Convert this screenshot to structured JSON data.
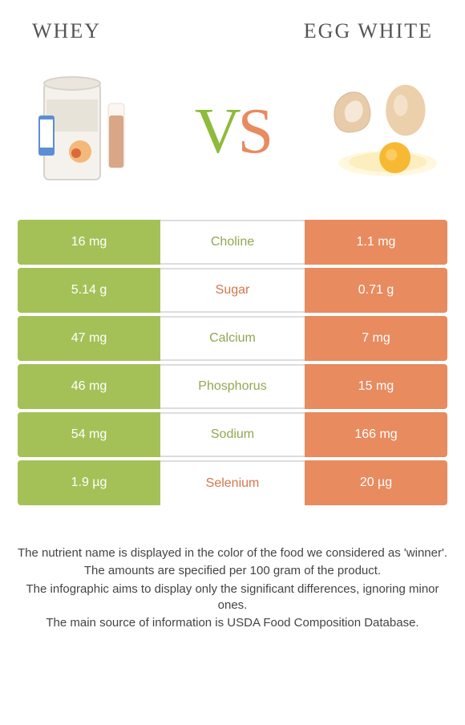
{
  "header": {
    "left_title": "WHEY",
    "right_title": "EGG WHITE"
  },
  "vs": {
    "v": "V",
    "s": "S"
  },
  "colors": {
    "left_bar": "#a4c158",
    "right_bar": "#e88b5f",
    "left_text": "#8fa850",
    "right_text": "#d4764a",
    "background": "#ffffff"
  },
  "rows": [
    {
      "left": "16 mg",
      "label": "Choline",
      "right": "1.1 mg",
      "winner": "left"
    },
    {
      "left": "5.14 g",
      "label": "Sugar",
      "right": "0.71 g",
      "winner": "right"
    },
    {
      "left": "47 mg",
      "label": "Calcium",
      "right": "7 mg",
      "winner": "left"
    },
    {
      "left": "46 mg",
      "label": "Phosphorus",
      "right": "15 mg",
      "winner": "left"
    },
    {
      "left": "54 mg",
      "label": "Sodium",
      "right": "166 mg",
      "winner": "left"
    },
    {
      "left": "1.9 µg",
      "label": "Selenium",
      "right": "20 µg",
      "winner": "right"
    }
  ],
  "footer": {
    "line1": "The nutrient name is displayed in the color of the food we considered as 'winner'.",
    "line2": "The amounts are specified per 100 gram of the product.",
    "line3": "The infographic aims to display only the significant differences, ignoring minor ones.",
    "line4": "The main source of information is USDA Food Composition Database."
  }
}
